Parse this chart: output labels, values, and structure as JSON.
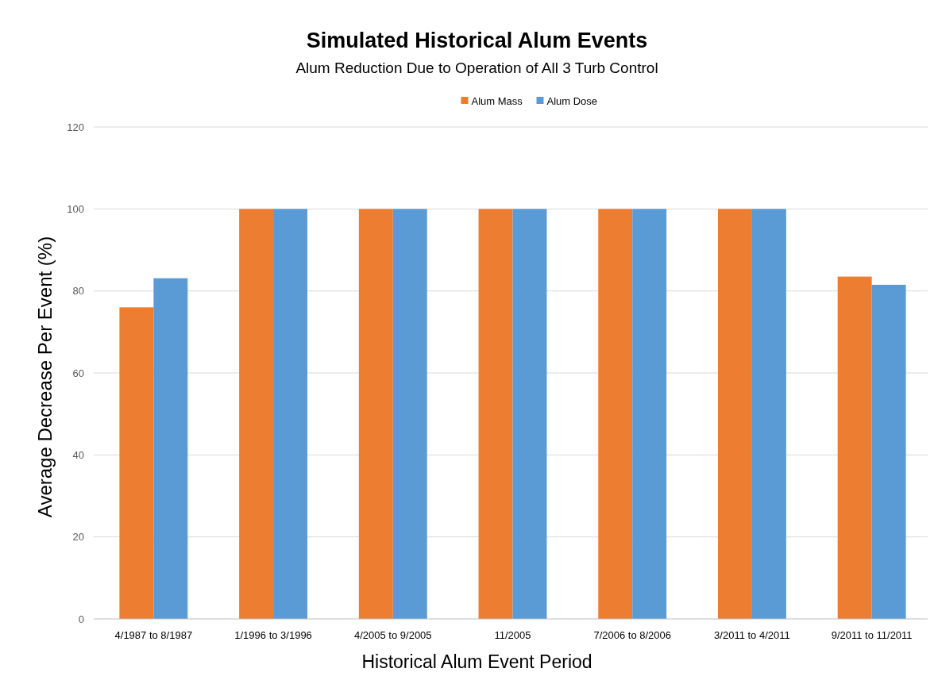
{
  "chart_data": {
    "type": "bar",
    "title": "Simulated Historical Alum Events",
    "subtitle": "Alum Reduction Due to Operation of All 3 Turb Control",
    "xlabel": "Historical Alum Event Period",
    "ylabel": "Average Decrease Per Event (%)",
    "categories": [
      "4/1987 to 8/1987",
      "1/1996 to 3/1996",
      "4/2005 to 9/2005",
      "11/2005",
      "7/2006 to 8/2006",
      "3/2011 to 4/2011",
      "9/2011 to 11/2011"
    ],
    "series": [
      {
        "name": "Alum Mass",
        "color": "#ed7d31",
        "values": [
          76,
          100,
          100,
          100,
          100,
          100,
          83.5
        ]
      },
      {
        "name": "Alum Dose",
        "color": "#5b9bd5",
        "values": [
          83.1,
          100,
          100,
          100,
          100,
          100,
          81.5
        ]
      }
    ],
    "ylim": [
      0,
      120
    ],
    "yticks": [
      0,
      20,
      40,
      60,
      80,
      100,
      120
    ],
    "grid": "y",
    "legend": "top"
  }
}
